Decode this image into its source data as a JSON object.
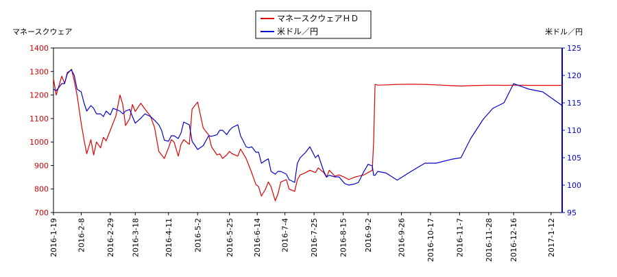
{
  "chart_data": {
    "type": "line",
    "title": "",
    "legend": {
      "placement": "top-center",
      "entries": [
        "マネースクウェアＨＤ",
        "米ドル／円"
      ]
    },
    "left_axis": {
      "label": "マネースクウェア",
      "ylim": [
        700,
        1400
      ],
      "ticks": [
        700,
        800,
        900,
        1000,
        1100,
        1200,
        1300,
        1400
      ]
    },
    "right_axis": {
      "label": "米ドル／円",
      "ylim": [
        95,
        125
      ],
      "ticks": [
        95,
        100,
        105,
        110,
        115,
        120,
        125
      ]
    },
    "x_axis": {
      "start": "2016-1-19",
      "end": "2017-1-20",
      "ticks": [
        "2016-1-19",
        "2016-2-8",
        "2016-2-29",
        "2016-3-18",
        "2016-4-11",
        "2016-5-2",
        "2016-5-25",
        "2016-6-14",
        "2016-7-4",
        "2016-7-25",
        "2016-8-15",
        "2016-9-2",
        "2016-9-26",
        "2016-10-17",
        "2016-11-7",
        "2016-11-28",
        "2016-12-16",
        "2017-1-12"
      ]
    },
    "grid": false,
    "series": [
      {
        "name": "マネースクウェアＨＤ",
        "axis": "left",
        "color": "#dd0000",
        "points": [
          [
            "2016-1-19",
            1270
          ],
          [
            "2016-1-21",
            1200
          ],
          [
            "2016-1-25",
            1280
          ],
          [
            "2016-1-27",
            1250
          ],
          [
            "2016-1-29",
            1290
          ],
          [
            "2016-2-1",
            1310
          ],
          [
            "2016-2-3",
            1260
          ],
          [
            "2016-2-5",
            1200
          ],
          [
            "2016-2-8",
            1080
          ],
          [
            "2016-2-10",
            1010
          ],
          [
            "2016-2-12",
            950
          ],
          [
            "2016-2-15",
            1010
          ],
          [
            "2016-2-17",
            945
          ],
          [
            "2016-2-19",
            1000
          ],
          [
            "2016-2-22",
            975
          ],
          [
            "2016-2-24",
            1020
          ],
          [
            "2016-2-26",
            1005
          ],
          [
            "2016-2-29",
            1050
          ],
          [
            "2016-3-2",
            1080
          ],
          [
            "2016-3-4",
            1110
          ],
          [
            "2016-3-7",
            1200
          ],
          [
            "2016-3-9",
            1160
          ],
          [
            "2016-3-11",
            1070
          ],
          [
            "2016-3-14",
            1100
          ],
          [
            "2016-3-16",
            1160
          ],
          [
            "2016-3-18",
            1130
          ],
          [
            "2016-3-22",
            1165
          ],
          [
            "2016-3-25",
            1140
          ],
          [
            "2016-3-29",
            1110
          ],
          [
            "2016-4-1",
            1060
          ],
          [
            "2016-4-4",
            960
          ],
          [
            "2016-4-6",
            945
          ],
          [
            "2016-4-8",
            930
          ],
          [
            "2016-4-11",
            975
          ],
          [
            "2016-4-13",
            1010
          ],
          [
            "2016-4-15",
            1000
          ],
          [
            "2016-4-18",
            940
          ],
          [
            "2016-4-20",
            990
          ],
          [
            "2016-4-22",
            1010
          ],
          [
            "2016-4-26",
            990
          ],
          [
            "2016-4-28",
            1140
          ],
          [
            "2016-5-2",
            1170
          ],
          [
            "2016-5-6",
            1060
          ],
          [
            "2016-5-10",
            1030
          ],
          [
            "2016-5-12",
            980
          ],
          [
            "2016-5-16",
            945
          ],
          [
            "2016-5-18",
            950
          ],
          [
            "2016-5-20",
            930
          ],
          [
            "2016-5-23",
            945
          ],
          [
            "2016-5-25",
            960
          ],
          [
            "2016-5-27",
            950
          ],
          [
            "2016-5-31",
            940
          ],
          [
            "2016-6-2",
            970
          ],
          [
            "2016-6-6",
            930
          ],
          [
            "2016-6-8",
            900
          ],
          [
            "2016-6-10",
            870
          ],
          [
            "2016-6-13",
            820
          ],
          [
            "2016-6-15",
            810
          ],
          [
            "2016-6-17",
            770
          ],
          [
            "2016-6-20",
            800
          ],
          [
            "2016-6-22",
            830
          ],
          [
            "2016-6-24",
            810
          ],
          [
            "2016-6-27",
            750
          ],
          [
            "2016-6-29",
            780
          ],
          [
            "2016-7-1",
            830
          ],
          [
            "2016-7-5",
            840
          ],
          [
            "2016-7-7",
            800
          ],
          [
            "2016-7-11",
            790
          ],
          [
            "2016-7-13",
            840
          ],
          [
            "2016-7-15",
            860
          ],
          [
            "2016-7-19",
            870
          ],
          [
            "2016-7-22",
            880
          ],
          [
            "2016-7-26",
            870
          ],
          [
            "2016-7-28",
            890
          ],
          [
            "2016-8-1",
            870
          ],
          [
            "2016-8-3",
            850
          ],
          [
            "2016-8-5",
            880
          ],
          [
            "2016-8-9",
            855
          ],
          [
            "2016-8-12",
            860
          ],
          [
            "2016-8-16",
            850
          ],
          [
            "2016-8-19",
            840
          ],
          [
            "2016-8-23",
            850
          ],
          [
            "2016-8-26",
            855
          ],
          [
            "2016-8-30",
            860
          ],
          [
            "2016-9-2",
            870
          ],
          [
            "2016-9-5",
            880
          ],
          [
            "2016-9-6",
            1000
          ],
          [
            "2016-9-7",
            1245
          ],
          [
            "2016-9-9",
            1242
          ],
          [
            "2016-9-15",
            1243
          ],
          [
            "2016-9-23",
            1245
          ],
          [
            "2016-10-3",
            1246
          ],
          [
            "2016-10-13",
            1245
          ],
          [
            "2016-10-21",
            1243
          ],
          [
            "2016-11-1",
            1240
          ],
          [
            "2016-11-8",
            1238
          ],
          [
            "2016-11-15",
            1240
          ],
          [
            "2016-11-24",
            1241
          ],
          [
            "2016-12-1",
            1242
          ],
          [
            "2016-12-9",
            1241
          ],
          [
            "2016-12-16",
            1242
          ],
          [
            "2016-12-27",
            1241
          ],
          [
            "2017-1-6",
            1241
          ],
          [
            "2017-1-20",
            1241
          ]
        ]
      },
      {
        "name": "米ドル／円",
        "axis": "right",
        "color": "#0000cc",
        "points": [
          [
            "2016-1-19",
            117.5
          ],
          [
            "2016-1-21",
            117.2
          ],
          [
            "2016-1-25",
            118.5
          ],
          [
            "2016-1-27",
            118.5
          ],
          [
            "2016-1-29",
            120.5
          ],
          [
            "2016-2-1",
            121.0
          ],
          [
            "2016-2-3",
            120.0
          ],
          [
            "2016-2-5",
            117.5
          ],
          [
            "2016-2-8",
            117.0
          ],
          [
            "2016-2-10",
            115.0
          ],
          [
            "2016-2-12",
            113.5
          ],
          [
            "2016-2-15",
            114.5
          ],
          [
            "2016-2-17",
            114.0
          ],
          [
            "2016-2-19",
            113.0
          ],
          [
            "2016-2-22",
            113.0
          ],
          [
            "2016-2-24",
            112.5
          ],
          [
            "2016-2-26",
            113.5
          ],
          [
            "2016-2-29",
            112.8
          ],
          [
            "2016-3-2",
            114.0
          ],
          [
            "2016-3-4",
            113.8
          ],
          [
            "2016-3-7",
            113.5
          ],
          [
            "2016-3-9",
            113.0
          ],
          [
            "2016-3-11",
            113.5
          ],
          [
            "2016-3-14",
            113.8
          ],
          [
            "2016-3-16",
            112.5
          ],
          [
            "2016-3-18",
            111.3
          ],
          [
            "2016-3-22",
            112.2
          ],
          [
            "2016-3-25",
            113.0
          ],
          [
            "2016-3-29",
            112.5
          ],
          [
            "2016-4-1",
            111.8
          ],
          [
            "2016-4-4",
            111.0
          ],
          [
            "2016-4-6",
            110.0
          ],
          [
            "2016-4-8",
            108.2
          ],
          [
            "2016-4-11",
            108.0
          ],
          [
            "2016-4-13",
            109.0
          ],
          [
            "2016-4-15",
            109.0
          ],
          [
            "2016-4-18",
            108.5
          ],
          [
            "2016-4-20",
            109.5
          ],
          [
            "2016-4-22",
            111.5
          ],
          [
            "2016-4-26",
            111.0
          ],
          [
            "2016-4-28",
            108.0
          ],
          [
            "2016-5-2",
            106.5
          ],
          [
            "2016-5-6",
            107.2
          ],
          [
            "2016-5-10",
            109.0
          ],
          [
            "2016-5-12",
            108.9
          ],
          [
            "2016-5-16",
            109.2
          ],
          [
            "2016-5-18",
            110.0
          ],
          [
            "2016-5-20",
            110.0
          ],
          [
            "2016-5-23",
            109.2
          ],
          [
            "2016-5-25",
            110.0
          ],
          [
            "2016-5-27",
            110.5
          ],
          [
            "2016-5-31",
            111.0
          ],
          [
            "2016-6-2",
            109.0
          ],
          [
            "2016-6-6",
            107.0
          ],
          [
            "2016-6-8",
            106.8
          ],
          [
            "2016-6-10",
            107.0
          ],
          [
            "2016-6-13",
            106.0
          ],
          [
            "2016-6-15",
            106.0
          ],
          [
            "2016-6-17",
            104.0
          ],
          [
            "2016-6-20",
            104.5
          ],
          [
            "2016-6-22",
            104.8
          ],
          [
            "2016-6-24",
            102.5
          ],
          [
            "2016-6-27",
            102.0
          ],
          [
            "2016-6-29",
            102.5
          ],
          [
            "2016-7-1",
            102.5
          ],
          [
            "2016-7-5",
            102.0
          ],
          [
            "2016-7-7",
            101.0
          ],
          [
            "2016-7-11",
            100.5
          ],
          [
            "2016-7-13",
            104.0
          ],
          [
            "2016-7-15",
            105.0
          ],
          [
            "2016-7-19",
            106.0
          ],
          [
            "2016-7-22",
            107.0
          ],
          [
            "2016-7-26",
            105.0
          ],
          [
            "2016-7-28",
            105.5
          ],
          [
            "2016-8-1",
            102.5
          ],
          [
            "2016-8-3",
            101.5
          ],
          [
            "2016-8-5",
            101.8
          ],
          [
            "2016-8-9",
            101.5
          ],
          [
            "2016-8-12",
            101.5
          ],
          [
            "2016-8-16",
            100.3
          ],
          [
            "2016-8-19",
            100.0
          ],
          [
            "2016-8-23",
            100.2
          ],
          [
            "2016-8-26",
            100.5
          ],
          [
            "2016-8-30",
            102.5
          ],
          [
            "2016-9-2",
            103.8
          ],
          [
            "2016-9-5",
            103.5
          ],
          [
            "2016-9-6",
            101.8
          ],
          [
            "2016-9-7",
            101.8
          ],
          [
            "2016-9-9",
            102.5
          ],
          [
            "2016-9-15",
            102.2
          ],
          [
            "2016-9-23",
            100.9
          ],
          [
            "2016-10-3",
            102.5
          ],
          [
            "2016-10-13",
            104.0
          ],
          [
            "2016-10-21",
            104.0
          ],
          [
            "2016-11-1",
            104.7
          ],
          [
            "2016-11-8",
            105.0
          ],
          [
            "2016-11-15",
            108.5
          ],
          [
            "2016-11-24",
            112.0
          ],
          [
            "2016-12-1",
            114.0
          ],
          [
            "2016-12-9",
            115.0
          ],
          [
            "2016-12-16",
            118.5
          ],
          [
            "2016-12-27",
            117.5
          ],
          [
            "2017-1-6",
            117.0
          ],
          [
            "2017-1-20",
            114.5
          ]
        ]
      }
    ]
  }
}
